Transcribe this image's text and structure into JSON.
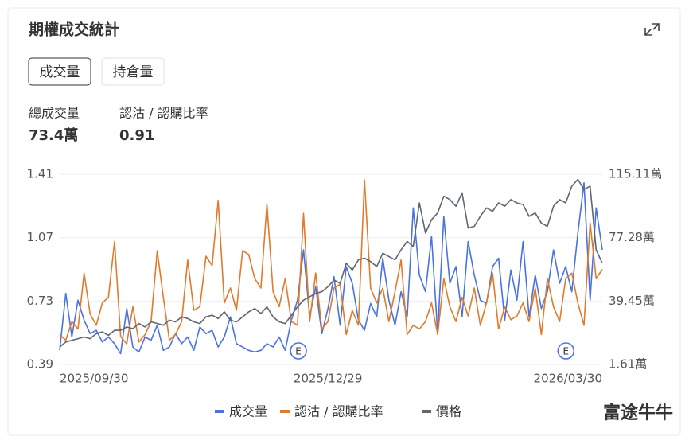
{
  "header": {
    "title": "期權成交統計"
  },
  "tabs": [
    "成交量",
    "持倉量"
  ],
  "stats": [
    {
      "label": "總成交量",
      "value": "73.4萬"
    },
    {
      "label": "認沽 / 認購比率",
      "value": "0.91"
    }
  ],
  "watermark": "富途牛牛",
  "chart_data": {
    "type": "line",
    "categories": [
      "2025/09/30",
      null,
      null,
      null,
      null,
      null,
      null,
      null,
      null,
      null,
      null,
      null,
      null,
      null,
      null,
      null,
      null,
      null,
      null,
      null,
      null,
      null,
      null,
      null,
      null,
      null,
      null,
      null,
      null,
      null,
      null,
      null,
      null,
      null,
      null,
      null,
      null,
      null,
      null,
      null,
      null,
      null,
      null,
      null,
      "2025/12/29",
      null,
      null,
      null,
      null,
      null,
      null,
      null,
      null,
      null,
      null,
      null,
      null,
      null,
      null,
      null,
      null,
      null,
      null,
      null,
      null,
      null,
      null,
      null,
      null,
      null,
      null,
      null,
      null,
      null,
      null,
      null,
      null,
      null,
      null,
      null,
      null,
      null,
      null,
      null,
      null,
      null,
      null,
      null,
      null,
      "2026/03/30"
    ],
    "ylim": [
      0.39,
      1.41
    ],
    "yticks": [
      0.39,
      0.73,
      1.07,
      1.41
    ],
    "y2lim": [
      1.61,
      115.11
    ],
    "y2ticks": [
      {
        "value": 1.61,
        "label": "1.61萬"
      },
      {
        "value": 39.45,
        "label": "39.45萬"
      },
      {
        "value": 77.28,
        "label": "77.28萬"
      },
      {
        "value": 115.11,
        "label": "115.11萬"
      }
    ],
    "grid": true,
    "event_labels": [
      "E",
      "E"
    ],
    "series": [
      {
        "name": "成交量",
        "color": "#4a72e0",
        "axis": "y2",
        "values": [
          10,
          44,
          18,
          40,
          28,
          20,
          22,
          15,
          18,
          14,
          8,
          35,
          12,
          9,
          18,
          16,
          25,
          10,
          12,
          20,
          14,
          18,
          10,
          24,
          20,
          22,
          12,
          18,
          30,
          14,
          12,
          10,
          9,
          10,
          14,
          12,
          18,
          10,
          28,
          40,
          70,
          30,
          48,
          20,
          35,
          54,
          25,
          60,
          50,
          28,
          22,
          38,
          30,
          65,
          40,
          25,
          45,
          30,
          95,
          55,
          45,
          78,
          20,
          90,
          50,
          60,
          30,
          75,
          55,
          40,
          38,
          60,
          65,
          28,
          58,
          40,
          75,
          30,
          55,
          35,
          45,
          70,
          50,
          60,
          45,
          80,
          110,
          40,
          95,
          70
        ]
      },
      {
        "name": "認沽 / 認購比率",
        "color": "#e07a2c",
        "values": [
          0.55,
          0.52,
          0.62,
          0.58,
          0.88,
          0.66,
          0.6,
          0.72,
          0.75,
          1.05,
          0.54,
          0.5,
          0.7,
          0.51,
          0.55,
          0.62,
          1.0,
          0.75,
          0.52,
          0.55,
          0.62,
          0.95,
          0.68,
          0.7,
          0.97,
          0.92,
          1.27,
          0.72,
          0.8,
          0.68,
          1.0,
          0.98,
          0.85,
          0.8,
          1.25,
          0.78,
          0.7,
          0.85,
          0.62,
          0.6,
          1.2,
          0.62,
          0.88,
          0.58,
          0.62,
          0.8,
          0.82,
          0.55,
          0.68,
          0.6,
          1.38,
          0.8,
          0.72,
          0.8,
          0.62,
          0.78,
          0.95,
          0.55,
          0.6,
          0.58,
          0.62,
          0.72,
          0.55,
          0.85,
          0.7,
          0.62,
          0.75,
          0.65,
          0.8,
          0.6,
          0.72,
          0.88,
          0.58,
          0.7,
          0.63,
          0.65,
          0.72,
          0.62,
          0.8,
          0.55,
          0.85,
          0.7,
          0.62,
          0.85,
          0.88,
          0.72,
          0.6,
          1.15,
          0.85,
          0.9
        ]
      },
      {
        "name": "價格",
        "color": "#5f6672",
        "axis": "y2",
        "values": [
          12,
          15,
          16,
          17,
          18,
          17,
          20,
          21,
          19,
          22,
          22,
          24,
          23,
          26,
          24,
          27,
          26,
          25,
          28,
          27,
          30,
          29,
          27,
          26,
          30,
          31,
          29,
          33,
          28,
          27,
          30,
          33,
          35,
          32,
          36,
          30,
          27,
          26,
          31,
          36,
          40,
          42,
          44,
          45,
          48,
          52,
          50,
          62,
          58,
          64,
          65,
          63,
          60,
          68,
          66,
          64,
          70,
          75,
          72,
          98,
          80,
          88,
          92,
          102,
          100,
          96,
          104,
          83,
          84,
          90,
          95,
          93,
          98,
          96,
          100,
          98,
          97,
          90,
          92,
          86,
          84,
          96,
          100,
          98,
          108,
          112,
          106,
          108,
          70,
          62
        ]
      }
    ]
  }
}
